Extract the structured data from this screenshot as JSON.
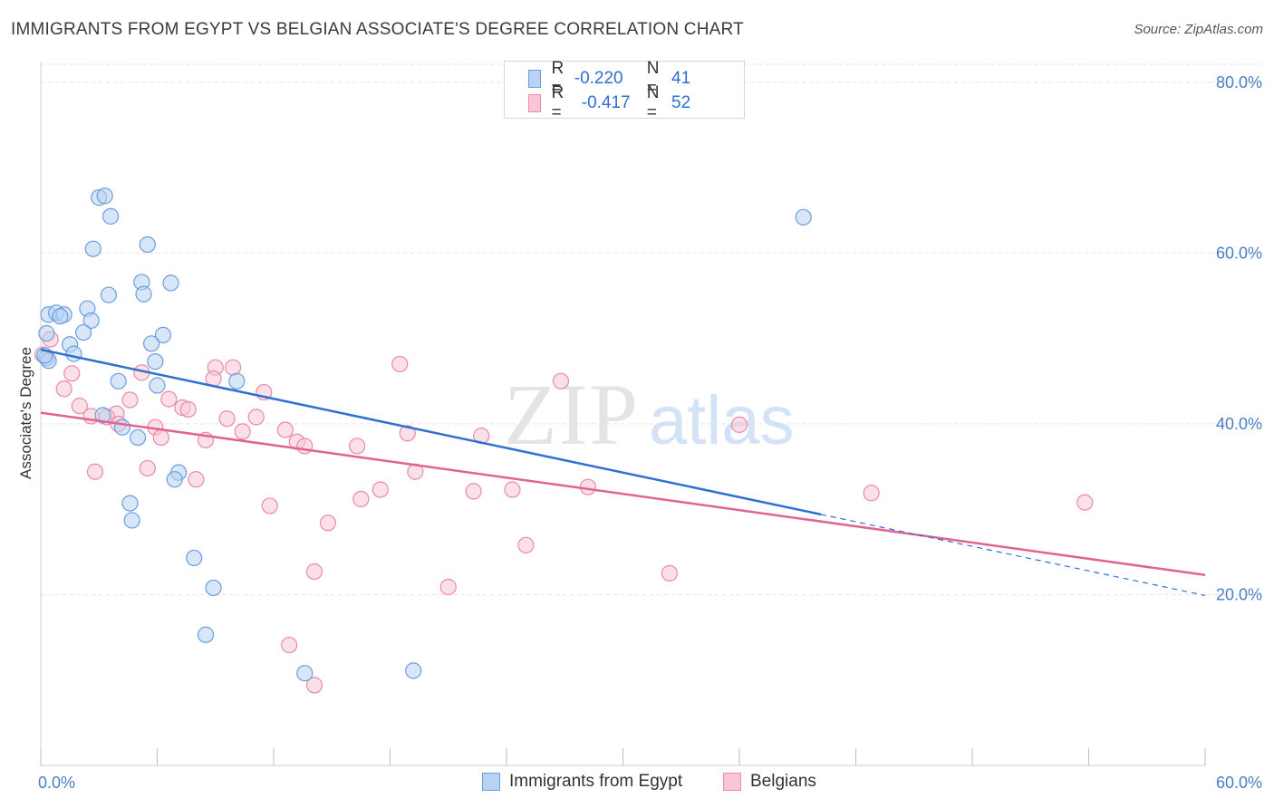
{
  "title": "IMMIGRANTS FROM EGYPT VS BELGIAN ASSOCIATE'S DEGREE CORRELATION CHART",
  "source": "Source: ZipAtlas.com",
  "watermark": {
    "zip": "ZIP",
    "atlas": "atlas"
  },
  "colors": {
    "blue_fill": "#b8d3f3",
    "blue_stroke": "#6b9ee0",
    "blue_line": "#2f6fd1",
    "pink_fill": "#f8c6d6",
    "pink_stroke": "#e98aa9",
    "pink_line": "#e0648f",
    "tick_text": "#4a7fc4",
    "grid": "#e2e2e2"
  },
  "legend": {
    "rows": [
      {
        "r_label": "R =",
        "r_value": "-0.220",
        "n_label": "N =",
        "n_value": "41"
      },
      {
        "r_label": "R =",
        "r_value": "-0.417",
        "n_label": "N =",
        "n_value": "52"
      }
    ]
  },
  "bottom_legend": {
    "series1": "Immigrants from Egypt",
    "series2": "Belgians"
  },
  "chart_data": {
    "type": "scatter",
    "title": "IMMIGRANTS FROM EGYPT VS BELGIAN ASSOCIATE'S DEGREE CORRELATION CHART",
    "xlabel": "",
    "ylabel": "Associate's Degree",
    "xlim": [
      0,
      60
    ],
    "ylim": [
      0,
      82
    ],
    "x_ticks": [
      {
        "value": 0,
        "label": "0.0%"
      },
      {
        "value": 60,
        "label": "60.0%"
      }
    ],
    "y_ticks": [
      {
        "value": 20,
        "label": "20.0%"
      },
      {
        "value": 40,
        "label": "40.0%"
      },
      {
        "value": 60,
        "label": "60.0%"
      },
      {
        "value": 80,
        "label": "80.0%"
      }
    ],
    "grid": true,
    "legend_position": "top-center",
    "series": [
      {
        "name": "Immigrants from Egypt",
        "color": "#6b9ee0",
        "points": [
          [
            3.0,
            66.5
          ],
          [
            3.3,
            66.7
          ],
          [
            3.6,
            64.3
          ],
          [
            2.7,
            60.5
          ],
          [
            5.5,
            61.0
          ],
          [
            5.2,
            56.6
          ],
          [
            6.7,
            56.5
          ],
          [
            5.3,
            55.2
          ],
          [
            3.5,
            55.1
          ],
          [
            2.4,
            53.5
          ],
          [
            0.4,
            52.8
          ],
          [
            0.8,
            53.0
          ],
          [
            1.2,
            52.8
          ],
          [
            2.6,
            52.1
          ],
          [
            1.0,
            52.6
          ],
          [
            2.2,
            50.7
          ],
          [
            0.3,
            50.6
          ],
          [
            6.3,
            50.4
          ],
          [
            1.5,
            49.3
          ],
          [
            5.7,
            49.4
          ],
          [
            1.7,
            48.2
          ],
          [
            0.3,
            47.7
          ],
          [
            5.9,
            47.3
          ],
          [
            4.0,
            45.0
          ],
          [
            10.1,
            45.0
          ],
          [
            6.0,
            44.5
          ],
          [
            3.2,
            41.0
          ],
          [
            4.2,
            39.6
          ],
          [
            5.0,
            38.4
          ],
          [
            7.1,
            34.3
          ],
          [
            6.9,
            33.5
          ],
          [
            4.6,
            30.7
          ],
          [
            4.7,
            28.7
          ],
          [
            7.9,
            24.3
          ],
          [
            8.9,
            20.8
          ],
          [
            8.5,
            15.3
          ],
          [
            13.6,
            10.8
          ],
          [
            19.2,
            11.1
          ],
          [
            39.3,
            64.2
          ],
          [
            0.4,
            47.4
          ],
          [
            0.2,
            48.0
          ]
        ]
      },
      {
        "name": "Belgians",
        "color": "#e98aa9",
        "points": [
          [
            0.5,
            49.9
          ],
          [
            0.1,
            48.1
          ],
          [
            1.6,
            45.9
          ],
          [
            1.2,
            44.1
          ],
          [
            5.2,
            46.0
          ],
          [
            9.0,
            46.6
          ],
          [
            9.9,
            46.6
          ],
          [
            8.9,
            45.3
          ],
          [
            11.5,
            43.7
          ],
          [
            18.5,
            47.0
          ],
          [
            26.8,
            45.0
          ],
          [
            4.6,
            42.8
          ],
          [
            6.6,
            42.9
          ],
          [
            7.3,
            41.9
          ],
          [
            7.6,
            41.7
          ],
          [
            2.0,
            42.1
          ],
          [
            3.9,
            41.2
          ],
          [
            2.6,
            40.9
          ],
          [
            3.4,
            40.8
          ],
          [
            9.6,
            40.6
          ],
          [
            11.1,
            40.8
          ],
          [
            4.0,
            40.0
          ],
          [
            5.9,
            39.6
          ],
          [
            10.4,
            39.1
          ],
          [
            12.6,
            39.3
          ],
          [
            18.9,
            38.9
          ],
          [
            22.7,
            38.6
          ],
          [
            6.2,
            38.4
          ],
          [
            8.5,
            38.1
          ],
          [
            13.2,
            37.9
          ],
          [
            13.6,
            37.4
          ],
          [
            16.3,
            37.4
          ],
          [
            5.5,
            34.8
          ],
          [
            2.8,
            34.4
          ],
          [
            19.3,
            34.4
          ],
          [
            8.0,
            33.5
          ],
          [
            17.5,
            32.3
          ],
          [
            22.3,
            32.1
          ],
          [
            24.3,
            32.3
          ],
          [
            28.2,
            32.6
          ],
          [
            16.5,
            31.2
          ],
          [
            11.8,
            30.4
          ],
          [
            14.8,
            28.4
          ],
          [
            25.0,
            25.8
          ],
          [
            14.1,
            22.7
          ],
          [
            32.4,
            22.5
          ],
          [
            21.0,
            20.9
          ],
          [
            42.8,
            31.9
          ],
          [
            53.8,
            30.8
          ],
          [
            36.0,
            39.9
          ],
          [
            12.8,
            14.1
          ],
          [
            14.1,
            9.4
          ]
        ]
      }
    ],
    "trend_lines": [
      {
        "series": "Immigrants from Egypt",
        "from": [
          0,
          48.7
        ],
        "to": [
          40.2,
          29.4
        ],
        "dashed_extension_to": [
          60,
          19.9
        ]
      },
      {
        "series": "Belgians",
        "from": [
          0,
          41.3
        ],
        "to": [
          60,
          22.3
        ]
      }
    ]
  }
}
